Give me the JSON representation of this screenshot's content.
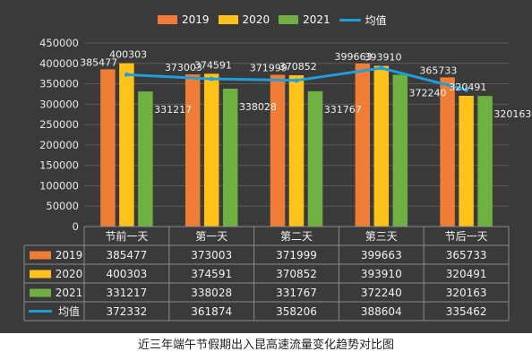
{
  "chart_data": {
    "type": "bar",
    "categories": [
      "节前一天",
      "第一天",
      "第二天",
      "第三天",
      "节后一天"
    ],
    "series": [
      {
        "name": "2019",
        "type": "bar",
        "color": "#ef7d35",
        "values": [
          385477,
          373003,
          371999,
          399663,
          365733
        ]
      },
      {
        "name": "2020",
        "type": "bar",
        "color": "#ffc21a",
        "values": [
          400303,
          374591,
          370852,
          393910,
          320491
        ]
      },
      {
        "name": "2021",
        "type": "bar",
        "color": "#6fb043",
        "values": [
          331217,
          338028,
          331767,
          372240,
          320163
        ]
      },
      {
        "name": "均值",
        "type": "line",
        "color": "#1e9fdc",
        "values": [
          372332,
          361874,
          358206,
          388604,
          335462
        ]
      }
    ],
    "ylim": [
      0,
      450000
    ],
    "yticks": [
      "0",
      "50000",
      "100000",
      "150000",
      "200000",
      "250000",
      "300000",
      "350000",
      "400000",
      "450000"
    ],
    "grid": true,
    "legend": "top-center",
    "data_table": true,
    "background": "#3a3a3a",
    "caption": "近三年端午节假期出入昆高速流量变化趋势对比图"
  }
}
